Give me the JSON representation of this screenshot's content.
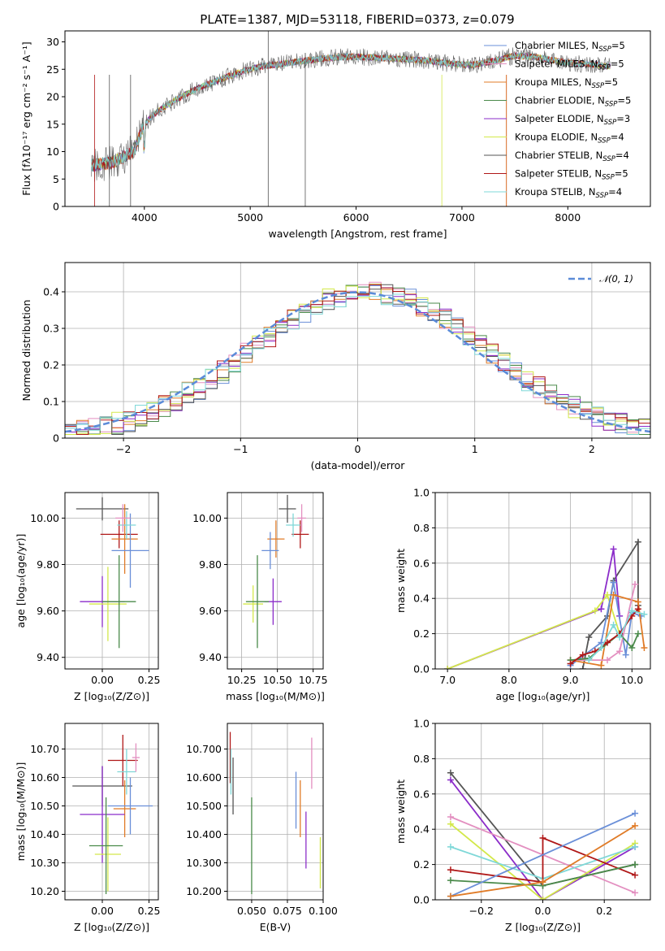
{
  "figure": {
    "title": "PLATE=1387, MJD=53118, FIBERID=0373, z=0.079"
  },
  "chart_data": [
    {
      "id": "spectrum",
      "type": "line",
      "xlabel": "wavelength [Angstrom, rest frame]",
      "ylabel": "Flux [fλ10⁻¹⁷ erg cm⁻² s⁻¹ A⁻¹]",
      "xlim": [
        3250,
        8780
      ],
      "ylim": [
        0,
        32
      ],
      "xticks": [
        4000,
        5000,
        6000,
        7000,
        8000
      ],
      "yticks": [
        0,
        5,
        10,
        15,
        20,
        25,
        30
      ],
      "legend_position": "upper right",
      "series": [
        {
          "name": "Chabrier MILES, N_SSP=5",
          "color": "#6a8fd8"
        },
        {
          "name": "Salpeter MILES, N_SSP=5",
          "color": "#e38fc0"
        },
        {
          "name": "Kroupa MILES, N_SSP=5",
          "color": "#e07b27"
        },
        {
          "name": "Chabrier ELODIE, N_SSP=5",
          "color": "#4a8a4a"
        },
        {
          "name": "Salpeter ELODIE, N_SSP=3",
          "color": "#8b2cc9"
        },
        {
          "name": "Kroupa ELODIE, N_SSP=4",
          "color": "#d3e84a"
        },
        {
          "name": "Chabrier STELIB, N_SSP=4",
          "color": "#555555"
        },
        {
          "name": "Salpeter STELIB, N_SSP=5",
          "color": "#b01818"
        },
        {
          "name": "Kroupa STELIB, N_SSP=4",
          "color": "#7fd8d8"
        }
      ],
      "continuum_shape": {
        "x": [
          3500,
          3700,
          3900,
          4000,
          4100,
          4300,
          4500,
          4700,
          4900,
          5100,
          5300,
          5500,
          5700,
          5900,
          6100,
          6300,
          6500,
          6700,
          6900,
          7100,
          7300,
          7500,
          7700,
          7900,
          8100,
          8300,
          8400
        ],
        "y": [
          7.5,
          8.0,
          10.0,
          15.0,
          17.0,
          19.5,
          21.5,
          23.0,
          24.5,
          25.5,
          26.0,
          26.5,
          27.0,
          27.3,
          27.2,
          27.0,
          26.8,
          26.5,
          26.0,
          25.8,
          26.5,
          27.5,
          27.2,
          26.5,
          26.0,
          25.8,
          25.5
        ]
      }
    },
    {
      "id": "residuals",
      "type": "histogram",
      "xlabel": "(data-model)/error",
      "ylabel": "Normed distribution",
      "xlim": [
        -2.5,
        2.5
      ],
      "ylim": [
        0,
        0.48
      ],
      "xticks": [
        -2,
        -1,
        0,
        1,
        2
      ],
      "yticks": [
        0.0,
        0.1,
        0.2,
        0.3,
        0.4
      ],
      "grid": true,
      "legend_position": "upper right",
      "reference_curve": {
        "name": "𝒩(0, 1)",
        "color": "#5b8bd8",
        "style": "dashed"
      },
      "bin_width": 0.1
    },
    {
      "id": "age_vs_Z",
      "type": "scatter",
      "xlabel": "Z [log₁₀(Z/Z⊙)]",
      "ylabel": "age  [log₁₀(age/yr)]",
      "xlim": [
        -0.2,
        0.3
      ],
      "ylim": [
        9.35,
        10.11
      ],
      "xticks": [
        0.0,
        0.25
      ],
      "yticks": [
        9.4,
        9.6,
        9.8,
        10.0
      ],
      "grid": true,
      "points": [
        {
          "x": 0.0,
          "xerr": 0.14,
          "y": 10.04,
          "yerr": 0.05,
          "color": "#555555"
        },
        {
          "x": 0.09,
          "xerr": 0.1,
          "y": 9.93,
          "yerr": 0.06,
          "color": "#b01818"
        },
        {
          "x": 0.12,
          "xerr": 0.07,
          "y": 9.91,
          "yerr": 0.15,
          "color": "#e07b27"
        },
        {
          "x": 0.15,
          "xerr": 0.1,
          "y": 9.86,
          "yerr": 0.16,
          "color": "#6a8fd8"
        },
        {
          "x": 0.13,
          "xerr": 0.05,
          "y": 9.97,
          "yerr": 0.06,
          "color": "#7fd8d8"
        },
        {
          "x": 0.0,
          "xerr": 0.12,
          "y": 9.64,
          "yerr": 0.11,
          "color": "#8b2cc9"
        },
        {
          "x": 0.03,
          "xerr": 0.1,
          "y": 9.63,
          "yerr": 0.16,
          "color": "#d3e84a"
        },
        {
          "x": 0.09,
          "xerr": 0.09,
          "y": 9.64,
          "yerr": 0.2,
          "color": "#4a8a4a"
        },
        {
          "x": 0.11,
          "xerr": 0.04,
          "y": 10.0,
          "yerr": 0.06,
          "color": "#e38fc0"
        }
      ]
    },
    {
      "id": "age_vs_mass",
      "type": "scatter",
      "xlabel": "mass [log₁₀(M/M⊙)]",
      "ylabel": "",
      "xlim": [
        10.15,
        10.82
      ],
      "ylim": [
        9.35,
        10.11
      ],
      "xticks": [
        10.25,
        10.5,
        10.75
      ],
      "yticks": [
        9.4,
        9.6,
        9.8,
        10.0
      ],
      "grid": true,
      "points": [
        {
          "x": 10.57,
          "xerr": 0.06,
          "y": 10.04,
          "yerr": 0.06,
          "color": "#555555"
        },
        {
          "x": 10.66,
          "xerr": 0.06,
          "y": 9.93,
          "yerr": 0.06,
          "color": "#b01818"
        },
        {
          "x": 10.49,
          "xerr": 0.06,
          "y": 9.91,
          "yerr": 0.08,
          "color": "#e07b27"
        },
        {
          "x": 10.45,
          "xerr": 0.06,
          "y": 9.86,
          "yerr": 0.08,
          "color": "#6a8fd8"
        },
        {
          "x": 10.61,
          "xerr": 0.05,
          "y": 9.97,
          "yerr": 0.05,
          "color": "#7fd8d8"
        },
        {
          "x": 10.47,
          "xerr": 0.06,
          "y": 9.64,
          "yerr": 0.1,
          "color": "#8b2cc9"
        },
        {
          "x": 10.33,
          "xerr": 0.07,
          "y": 9.63,
          "yerr": 0.08,
          "color": "#d3e84a"
        },
        {
          "x": 10.36,
          "xerr": 0.08,
          "y": 9.64,
          "yerr": 0.2,
          "color": "#4a8a4a"
        },
        {
          "x": 10.67,
          "xerr": 0.03,
          "y": 10.0,
          "yerr": 0.06,
          "color": "#e38fc0"
        }
      ]
    },
    {
      "id": "massweight_vs_age",
      "type": "line",
      "xlabel": "age  [log₁₀(age/yr)]",
      "ylabel": "mass weight",
      "xlim": [
        6.8,
        10.3
      ],
      "ylim": [
        0,
        1.0
      ],
      "xticks": [
        7,
        8,
        9,
        10
      ],
      "yticks": [
        0.0,
        0.2,
        0.4,
        0.6,
        0.8,
        1.0
      ],
      "grid": true,
      "series": [
        {
          "color": "#555555",
          "x": [
            9.2,
            9.3,
            9.6,
            9.7,
            10.1,
            10.1
          ],
          "y": [
            0.0,
            0.18,
            0.3,
            0.5,
            0.72,
            0.36
          ]
        },
        {
          "color": "#8b2cc9",
          "x": [
            7.0,
            9.5,
            9.7,
            9.8
          ],
          "y": [
            0.0,
            0.34,
            0.68,
            0.3
          ]
        },
        {
          "color": "#d3e84a",
          "x": [
            7.0,
            9.4,
            9.6,
            9.8
          ],
          "y": [
            0.0,
            0.33,
            0.42,
            0.2
          ]
        },
        {
          "color": "#6a8fd8",
          "x": [
            9.0,
            9.5,
            9.7,
            9.9,
            10.0,
            10.15
          ],
          "y": [
            0.02,
            0.15,
            0.49,
            0.08,
            0.32,
            0.3
          ]
        },
        {
          "color": "#e07b27",
          "x": [
            9.0,
            9.5,
            9.7,
            10.1,
            10.2
          ],
          "y": [
            0.05,
            0.02,
            0.42,
            0.38,
            0.12
          ]
        },
        {
          "color": "#e38fc0",
          "x": [
            9.0,
            9.6,
            9.8,
            10.05
          ],
          "y": [
            0.05,
            0.05,
            0.1,
            0.48
          ]
        },
        {
          "color": "#4a8a4a",
          "x": [
            9.0,
            9.3,
            9.8,
            10.0,
            10.1
          ],
          "y": [
            0.05,
            0.06,
            0.2,
            0.12,
            0.2
          ]
        },
        {
          "color": "#b01818",
          "x": [
            9.0,
            9.2,
            9.4,
            9.6,
            9.8,
            10.0,
            10.1
          ],
          "y": [
            0.03,
            0.08,
            0.1,
            0.15,
            0.2,
            0.3,
            0.34
          ]
        },
        {
          "color": "#7fd8d8",
          "x": [
            9.3,
            9.5,
            9.7,
            9.8,
            10.0,
            10.2
          ],
          "y": [
            0.05,
            0.12,
            0.25,
            0.18,
            0.33,
            0.31
          ]
        }
      ]
    },
    {
      "id": "mass_vs_Z",
      "type": "scatter",
      "xlabel": "Z [log₁₀(Z/Z⊙)]",
      "ylabel": "mass [log₁₀(M/M⊙)]",
      "xlim": [
        -0.2,
        0.3
      ],
      "ylim": [
        10.17,
        10.79
      ],
      "xticks": [
        0.0,
        0.25
      ],
      "yticks": [
        10.2,
        10.3,
        10.4,
        10.5,
        10.6,
        10.7
      ],
      "grid": true,
      "points": [
        {
          "x": 0.0,
          "xerr": 0.16,
          "y": 10.57,
          "yerr": 0.07,
          "color": "#555555"
        },
        {
          "x": 0.11,
          "xerr": 0.08,
          "y": 10.66,
          "yerr": 0.09,
          "color": "#b01818"
        },
        {
          "x": 0.12,
          "xerr": 0.06,
          "y": 10.49,
          "yerr": 0.1,
          "color": "#e07b27"
        },
        {
          "x": 0.15,
          "xerr": 0.12,
          "y": 10.5,
          "yerr": 0.1,
          "color": "#6a8fd8"
        },
        {
          "x": 0.13,
          "xerr": 0.05,
          "y": 10.62,
          "yerr": 0.08,
          "color": "#7fd8d8"
        },
        {
          "x": 0.0,
          "xerr": 0.12,
          "y": 10.47,
          "yerr": 0.17,
          "color": "#8b2cc9"
        },
        {
          "x": 0.03,
          "xerr": 0.07,
          "y": 10.33,
          "yerr": 0.13,
          "color": "#d3e84a"
        },
        {
          "x": 0.02,
          "xerr": 0.09,
          "y": 10.36,
          "yerr": 0.17,
          "color": "#4a8a4a"
        },
        {
          "x": 0.18,
          "xerr": 0.02,
          "y": 10.67,
          "yerr": 0.05,
          "color": "#e38fc0"
        }
      ]
    },
    {
      "id": "mass_vs_ebv",
      "type": "scatter",
      "xlabel": "E(B-V)",
      "ylabel": "",
      "xlim": [
        0.033,
        0.1
      ],
      "ylim": [
        10.17,
        10.79
      ],
      "xticks": [
        0.05,
        0.075,
        0.1
      ],
      "yticks": [
        10.2,
        10.3,
        10.4,
        10.5,
        10.6,
        10.7
      ],
      "grid": true,
      "points": [
        {
          "x": 0.035,
          "y": 10.67,
          "yerr": 0.09,
          "color": "#b01818"
        },
        {
          "x": 0.0355,
          "y": 10.62,
          "yerr": 0.08,
          "color": "#7fd8d8"
        },
        {
          "x": 0.037,
          "y": 10.57,
          "yerr": 0.1,
          "color": "#555555"
        },
        {
          "x": 0.05,
          "y": 10.36,
          "yerr": 0.17,
          "color": "#4a8a4a"
        },
        {
          "x": 0.081,
          "y": 10.52,
          "yerr": 0.1,
          "color": "#6a8fd8"
        },
        {
          "x": 0.084,
          "y": 10.49,
          "yerr": 0.1,
          "color": "#e07b27"
        },
        {
          "x": 0.088,
          "y": 10.38,
          "yerr": 0.1,
          "color": "#8b2cc9"
        },
        {
          "x": 0.092,
          "y": 10.65,
          "yerr": 0.09,
          "color": "#e38fc0"
        },
        {
          "x": 0.098,
          "y": 10.3,
          "yerr": 0.09,
          "color": "#d3e84a"
        }
      ]
    },
    {
      "id": "massweight_vs_Z",
      "type": "line",
      "xlabel": "Z [log₁₀(Z/Z⊙)]",
      "ylabel": "mass weight",
      "xlim": [
        -0.35,
        0.35
      ],
      "ylim": [
        0,
        1.0
      ],
      "xticks": [
        -0.2,
        0.0,
        0.2
      ],
      "yticks": [
        0.0,
        0.2,
        0.4,
        0.6,
        0.8,
        1.0
      ],
      "grid": true,
      "series": [
        {
          "color": "#555555",
          "x": [
            -0.3,
            0.0,
            0.3
          ],
          "y": [
            0.72,
            0.08,
            0.2
          ]
        },
        {
          "color": "#8b2cc9",
          "x": [
            -0.3,
            0.0,
            0.3
          ],
          "y": [
            0.68,
            0.0,
            0.3
          ]
        },
        {
          "color": "#e38fc0",
          "x": [
            -0.3,
            0.3
          ],
          "y": [
            0.47,
            0.04
          ]
        },
        {
          "color": "#d3e84a",
          "x": [
            -0.3,
            0.0,
            0.3
          ],
          "y": [
            0.43,
            0.0,
            0.32
          ]
        },
        {
          "color": "#7fd8d8",
          "x": [
            -0.3,
            0.0,
            0.3
          ],
          "y": [
            0.3,
            0.12,
            0.3
          ]
        },
        {
          "color": "#b01818",
          "x": [
            -0.3,
            0.0,
            0.0,
            0.3
          ],
          "y": [
            0.17,
            0.1,
            0.35,
            0.14
          ]
        },
        {
          "color": "#4a8a4a",
          "x": [
            -0.3,
            0.0,
            0.3
          ],
          "y": [
            0.11,
            0.08,
            0.2
          ]
        },
        {
          "color": "#6a8fd8",
          "x": [
            -0.3,
            0.3
          ],
          "y": [
            0.02,
            0.49
          ]
        },
        {
          "color": "#e07b27",
          "x": [
            -0.3,
            0.0,
            0.3
          ],
          "y": [
            0.02,
            0.1,
            0.42
          ]
        }
      ]
    }
  ]
}
